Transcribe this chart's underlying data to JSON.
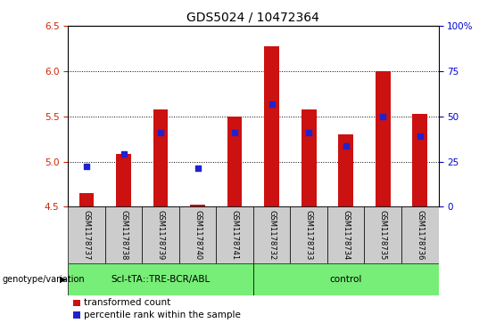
{
  "title": "GDS5024 / 10472364",
  "samples": [
    "GSM1178737",
    "GSM1178738",
    "GSM1178739",
    "GSM1178740",
    "GSM1178741",
    "GSM1178732",
    "GSM1178733",
    "GSM1178734",
    "GSM1178735",
    "GSM1178736"
  ],
  "red_values": [
    4.65,
    5.08,
    5.58,
    4.52,
    5.5,
    6.27,
    5.58,
    5.3,
    6.0,
    5.53
  ],
  "blue_values": [
    4.95,
    5.08,
    5.32,
    4.93,
    5.32,
    5.63,
    5.32,
    5.17,
    5.5,
    5.28
  ],
  "ylim_left": [
    4.5,
    6.5
  ],
  "ylim_right": [
    0,
    100
  ],
  "yticks_left": [
    4.5,
    5.0,
    5.5,
    6.0,
    6.5
  ],
  "yticks_right": [
    0,
    25,
    50,
    75,
    100
  ],
  "ytick_labels_right": [
    "0",
    "25",
    "50",
    "75",
    "100%"
  ],
  "base": 4.5,
  "group1_label": "ScI-tTA::TRE-BCR/ABL",
  "group2_label": "control",
  "group1_count": 5,
  "group2_count": 5,
  "genotype_label": "genotype/variation",
  "legend_red": "transformed count",
  "legend_blue": "percentile rank within the sample",
  "bar_color": "#cc1111",
  "blue_color": "#2222cc",
  "group_bg": "#77ee77",
  "sample_bg": "#cccccc",
  "bar_width": 0.4,
  "title_fontsize": 10,
  "tick_fontsize": 7.5,
  "legend_fontsize": 7.5
}
